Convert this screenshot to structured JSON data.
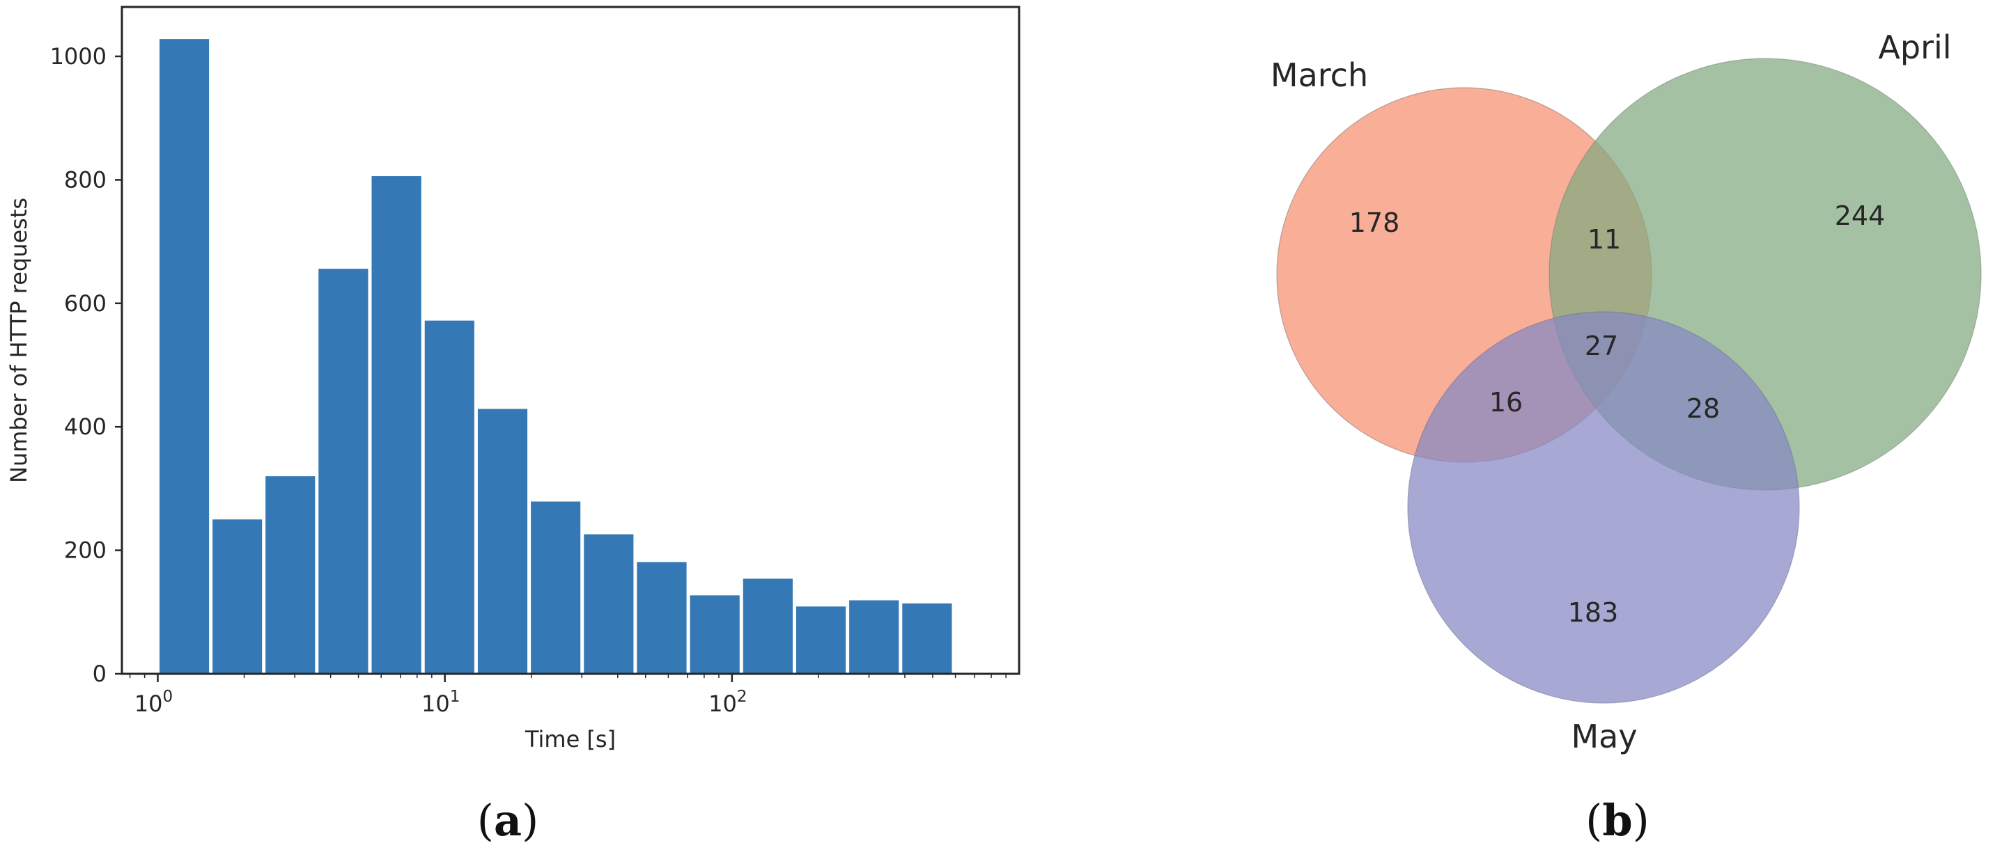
{
  "chart_data": [
    {
      "type": "bar",
      "panel_label": "(a)",
      "xlabel": "Time [s]",
      "ylabel": "Number of HTTP requests",
      "xscale": "log",
      "xlim": [
        0.75,
        1000
      ],
      "ylim": [
        0,
        1080
      ],
      "yticks": [
        0,
        200,
        400,
        600,
        800,
        1000
      ],
      "xticks": [
        {
          "base": "10",
          "exp": "0",
          "value": 1
        },
        {
          "base": "10",
          "exp": "1",
          "value": 10
        },
        {
          "base": "10",
          "exp": "2",
          "value": 100
        }
      ],
      "bin_edges": [
        1.0,
        1.53,
        2.34,
        3.58,
        5.48,
        8.39,
        12.84,
        19.65,
        30.07,
        46.02,
        70.43,
        107.8,
        165.0,
        252.5,
        386.4,
        591.4
      ],
      "values": [
        1028,
        250,
        320,
        656,
        806,
        572,
        429,
        279,
        226,
        181,
        127,
        154,
        109,
        119,
        114
      ],
      "bar_color": "#3479b5",
      "grid": false
    },
    {
      "type": "venn",
      "panel_label": "(b)",
      "sets": [
        {
          "name": "March",
          "color": "#f6977a"
        },
        {
          "name": "April",
          "color": "#82a97f"
        },
        {
          "name": "May",
          "color": "#8588c4"
        }
      ],
      "regions": {
        "March_only": "178",
        "April_only": "244",
        "May_only": "183",
        "March_April": "11",
        "March_May": "16",
        "April_May": "28",
        "all": "27"
      }
    }
  ]
}
